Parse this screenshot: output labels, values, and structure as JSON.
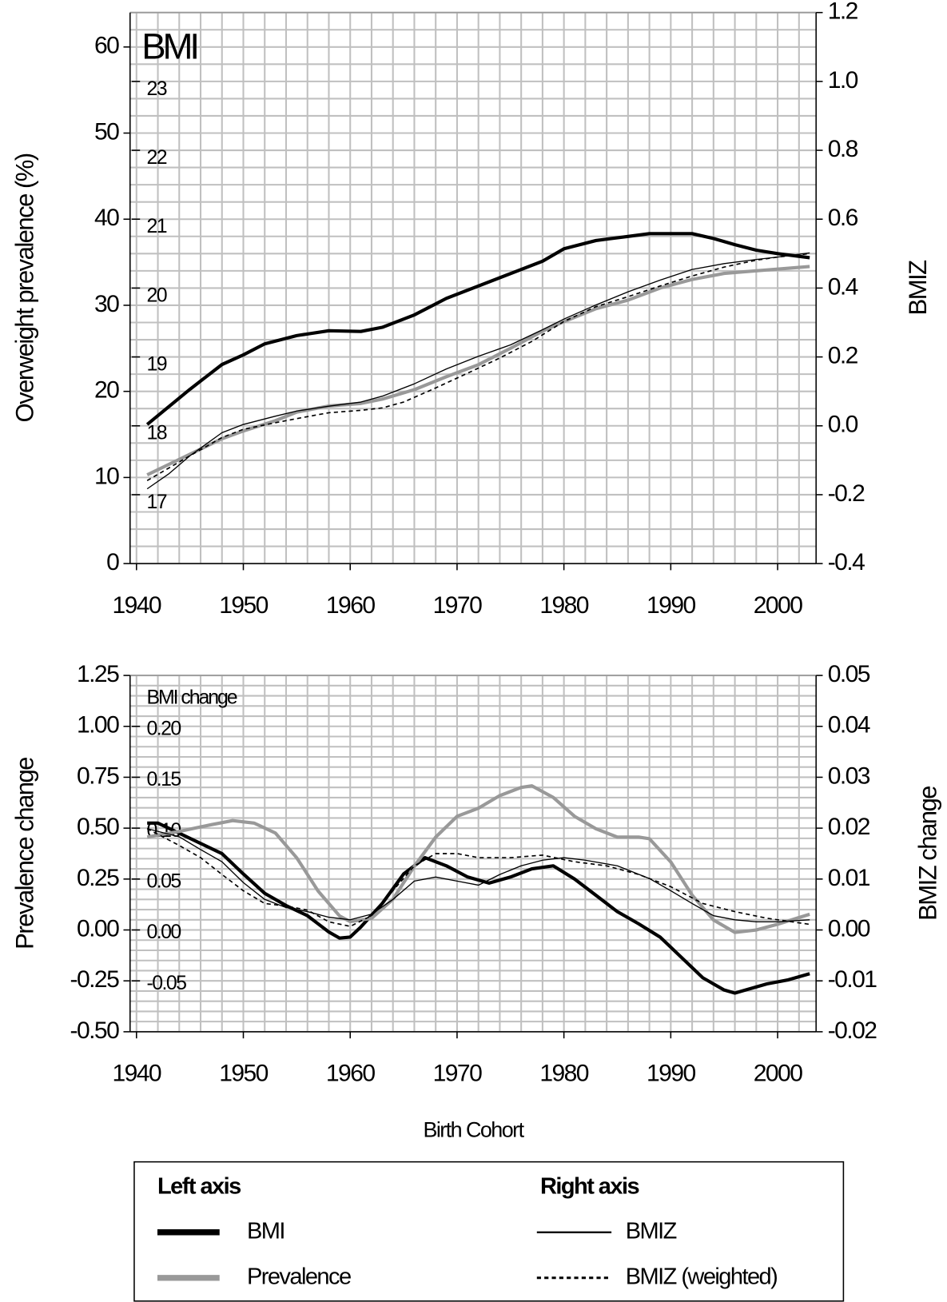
{
  "chart_data": [
    {
      "type": "line",
      "xticks": [
        1940,
        1950,
        1960,
        1970,
        1980,
        1990,
        2000
      ],
      "xlim": [
        1939.4,
        2003.6
      ],
      "ylabel": "Overweight prevalence (%)",
      "ylim": [
        0,
        64
      ],
      "yticks": [
        0,
        10,
        20,
        30,
        40,
        50,
        60
      ],
      "y2label": "BMIZ",
      "y2lim": [
        -0.4,
        1.2
      ],
      "y2ticks": [
        -0.4,
        -0.2,
        {
          "value": 0,
          "label": "0.0"
        },
        0.2,
        0.4,
        0.6,
        0.8,
        {
          "value": 1,
          "label": "1.0"
        },
        1.2
      ],
      "y3label": "BMI",
      "y3lim": [
        16,
        24
      ],
      "y3ticks": [
        17,
        18,
        19,
        20,
        21,
        22,
        23
      ],
      "grid": {
        "subdivisions": 5
      },
      "series": [
        {
          "name": "BMI",
          "color": "#000000",
          "axis": "y3",
          "width": 4,
          "dash": "none",
          "x": [
            1941,
            1945,
            1948,
            1950,
            1952,
            1955,
            1958,
            1961,
            1963,
            1966,
            1969,
            1972,
            1975,
            1978,
            1980,
            1983,
            1986,
            1988,
            1992,
            1994,
            1996,
            1998,
            2000,
            2003
          ],
          "values": [
            18.02,
            18.53,
            18.89,
            19.03,
            19.19,
            19.31,
            19.38,
            19.37,
            19.43,
            19.61,
            19.85,
            20.03,
            20.21,
            20.39,
            20.57,
            20.69,
            20.75,
            20.79,
            20.79,
            20.72,
            20.63,
            20.55,
            20.5,
            20.44
          ]
        },
        {
          "name": "Prevalence",
          "color": "#999999",
          "axis": "y",
          "width": 4,
          "dash": "none",
          "x": [
            1941,
            1945,
            1948,
            1950,
            1953,
            1955,
            1958,
            1961,
            1963,
            1966,
            1969,
            1972,
            1975,
            1978,
            1980,
            1983,
            1986,
            1989,
            1992,
            1995,
            1998,
            2000,
            2003
          ],
          "values": [
            10.3,
            12.7,
            14.5,
            15.4,
            16.6,
            17.6,
            18.3,
            18.6,
            19.1,
            20.2,
            21.7,
            23.1,
            25.0,
            27.0,
            28.1,
            29.6,
            30.6,
            32.0,
            33.0,
            33.7,
            34.0,
            34.2,
            34.5
          ]
        },
        {
          "name": "BMIZ",
          "color": "#000000",
          "axis": "y2",
          "width": 1.3,
          "dash": "none",
          "x": [
            1941,
            1943,
            1945,
            1948,
            1950,
            1953,
            1955,
            1958,
            1961,
            1963,
            1966,
            1969,
            1972,
            1975,
            1978,
            1980,
            1983,
            1986,
            1989,
            1992,
            1995,
            1998,
            2000,
            2003
          ],
          "values": [
            -0.183,
            -0.14,
            -0.087,
            -0.02,
            0.004,
            0.028,
            0.043,
            0.057,
            0.069,
            0.086,
            0.122,
            0.165,
            0.202,
            0.235,
            0.279,
            0.31,
            0.351,
            0.389,
            0.423,
            0.454,
            0.471,
            0.483,
            0.49,
            0.502
          ]
        },
        {
          "name": "BMIZ (weighted)",
          "color": "#000000",
          "axis": "y2",
          "width": 1.6,
          "dash": "5 4",
          "x": [
            1941,
            1943,
            1945,
            1948,
            1950,
            1953,
            1955,
            1958,
            1961,
            1963,
            1965,
            1968,
            1971,
            1974,
            1977,
            1980,
            1983,
            1986,
            1989,
            1992,
            1995,
            1998,
            2000,
            2003
          ],
          "values": [
            -0.159,
            -0.123,
            -0.087,
            -0.034,
            -0.01,
            0.009,
            0.021,
            0.038,
            0.045,
            0.052,
            0.069,
            0.11,
            0.153,
            0.197,
            0.245,
            0.303,
            0.346,
            0.375,
            0.406,
            0.435,
            0.461,
            0.481,
            0.49,
            0.5
          ]
        }
      ]
    },
    {
      "type": "line",
      "xlabel": "Birth Cohort",
      "xticks": [
        1940,
        1950,
        1960,
        1970,
        1980,
        1990,
        2000
      ],
      "xlim": [
        1939.4,
        2003.6
      ],
      "ylabel": "Prevalence change",
      "ylim": [
        -0.5,
        1.25
      ],
      "yticks": [
        {
          "value": -0.5,
          "label": "-0.50"
        },
        -0.25,
        {
          "value": 0,
          "label": "0.00"
        },
        0.25,
        {
          "value": 0.5,
          "label": "0.50"
        },
        0.75,
        {
          "value": 1,
          "label": "1.00"
        },
        1.25
      ],
      "y2label": "BMIZ change",
      "y2lim": [
        -0.02,
        0.05
      ],
      "y2ticks": [
        -0.02,
        -0.01,
        {
          "value": 0,
          "label": "0.00"
        },
        0.01,
        0.02,
        0.03,
        0.04,
        0.05
      ],
      "y3label": "BMI change",
      "y3lim": [
        -0.1,
        0.25
      ],
      "y3ticks": [
        -0.05,
        {
          "value": 0,
          "label": "0.00"
        },
        0.05,
        {
          "value": 0.1,
          "label": "0.10"
        },
        0.15,
        {
          "value": 0.2,
          "label": "0.20"
        }
      ],
      "grid": {
        "subdivisions": 5
      },
      "series": [
        {
          "name": "BMI",
          "color": "#000000",
          "axis": "y3",
          "width": 4,
          "dash": "none",
          "x": [
            1941,
            1942,
            1944,
            1946,
            1948,
            1950,
            1952,
            1954,
            1956,
            1957,
            1958,
            1959,
            1960,
            1961,
            1963,
            1965,
            1967,
            1969,
            1971,
            1973,
            1975,
            1977,
            1979,
            1981,
            1983,
            1985,
            1987,
            1989,
            1991,
            1993,
            1995,
            1996,
            1997,
            1999,
            2001,
            2003
          ],
          "values": [
            0.105,
            0.105,
            0.095,
            0.085,
            0.075,
            0.055,
            0.036,
            0.024,
            0.014,
            0.006,
            -0.002,
            -0.008,
            -0.007,
            0.003,
            0.026,
            0.055,
            0.071,
            0.063,
            0.052,
            0.046,
            0.052,
            0.06,
            0.063,
            0.05,
            0.034,
            0.018,
            0.006,
            -0.007,
            -0.027,
            -0.047,
            -0.059,
            -0.062,
            -0.059,
            -0.053,
            -0.049,
            -0.043
          ]
        },
        {
          "name": "Prevalence",
          "color": "#999999",
          "axis": "y",
          "width": 4,
          "dash": "none",
          "x": [
            1941,
            1944,
            1947,
            1949,
            1951,
            1953,
            1955,
            1957,
            1959,
            1960,
            1962,
            1964,
            1966,
            1968,
            1970,
            1972,
            1974,
            1976,
            1977,
            1979,
            1981,
            1983,
            1985,
            1987,
            1988,
            1990,
            1992,
            1994,
            1996,
            1998,
            2000,
            2002,
            2003
          ],
          "values": [
            0.456,
            0.484,
            0.517,
            0.537,
            0.525,
            0.476,
            0.354,
            0.191,
            0.069,
            0.041,
            0.057,
            0.151,
            0.313,
            0.456,
            0.558,
            0.598,
            0.66,
            0.7,
            0.708,
            0.651,
            0.558,
            0.497,
            0.456,
            0.456,
            0.448,
            0.334,
            0.171,
            0.049,
            -0.012,
            0,
            0.028,
            0.061,
            0.077
          ]
        },
        {
          "name": "BMIZ",
          "color": "#000000",
          "axis": "y2",
          "width": 1.3,
          "dash": "none",
          "x": [
            1941,
            1944,
            1946,
            1948,
            1950,
            1952,
            1954,
            1956,
            1958,
            1960,
            1962,
            1964,
            1966,
            1968,
            1970,
            1972,
            1974,
            1976,
            1978,
            1980,
            1982,
            1985,
            1988,
            1990,
            1992,
            1994,
            1996,
            1998,
            2000,
            2003
          ],
          "values": [
            0.0199,
            0.0183,
            0.0158,
            0.0134,
            0.0093,
            0.006,
            0.0044,
            0.0036,
            0.0025,
            0.002,
            0.0031,
            0.006,
            0.0096,
            0.0104,
            0.0096,
            0.0088,
            0.0109,
            0.0126,
            0.0137,
            0.0142,
            0.0137,
            0.0126,
            0.0101,
            0.0077,
            0.0052,
            0.0028,
            0.002,
            0.0016,
            0.0016,
            0.002
          ]
        },
        {
          "name": "BMIZ (weighted)",
          "color": "#000000",
          "axis": "y2",
          "width": 1.6,
          "dash": "5 4",
          "x": [
            1941,
            1944,
            1946,
            1948,
            1950,
            1952,
            1954,
            1956,
            1958,
            1960,
            1962,
            1964,
            1966,
            1968,
            1970,
            1972,
            1975,
            1978,
            1981,
            1984,
            1987,
            1990,
            1993,
            1996,
            1999,
            2003
          ],
          "values": [
            0.0199,
            0.0166,
            0.0142,
            0.0109,
            0.0077,
            0.0052,
            0.0047,
            0.0039,
            0.0016,
            0.0007,
            0.0028,
            0.0077,
            0.0126,
            0.015,
            0.015,
            0.0142,
            0.0142,
            0.0147,
            0.0134,
            0.0126,
            0.0109,
            0.0085,
            0.0052,
            0.0036,
            0.0023,
            0.0011
          ]
        }
      ]
    }
  ],
  "legend": {
    "left_title": "Left axis",
    "right_title": "Right axis"
  }
}
